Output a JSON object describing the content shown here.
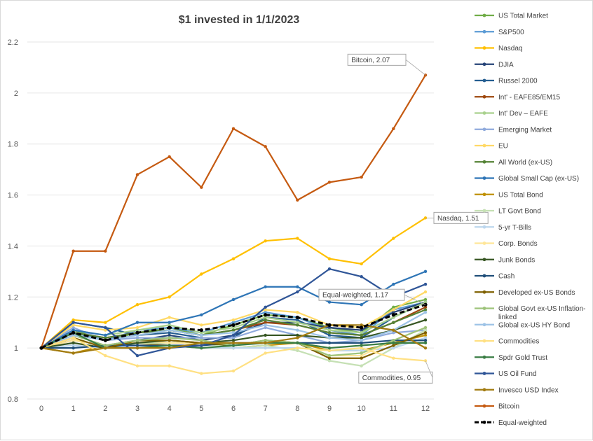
{
  "chart_data": {
    "type": "line",
    "title": "$1 invested in 1/1/2023",
    "x": [
      0,
      1,
      2,
      3,
      4,
      5,
      6,
      7,
      8,
      9,
      10,
      11,
      12
    ],
    "ylim": [
      0.8,
      2.2
    ],
    "yticks": [
      0.8,
      1,
      1.2,
      1.4,
      1.6,
      1.8,
      2,
      2.2
    ],
    "ytick_labels": [
      "0.8",
      "1",
      "1.2",
      "1.4",
      "1.6",
      "1.8",
      "2",
      "2.2"
    ],
    "xtick_labels": [
      "0",
      "1",
      "2",
      "3",
      "4",
      "5",
      "6",
      "7",
      "8",
      "9",
      "10",
      "11",
      "12"
    ],
    "grid": "horizontal",
    "legend_position": "right",
    "series": [
      {
        "name": "US Total Market",
        "color": "#70ad47",
        "values": [
          1,
          1.07,
          1.03,
          1.06,
          1.08,
          1.05,
          1.09,
          1.13,
          1.12,
          1.08,
          1.06,
          1.16,
          1.19
        ]
      },
      {
        "name": "S&P500",
        "color": "#5b9bd5",
        "values": [
          1,
          1.06,
          1.03,
          1.07,
          1.08,
          1.06,
          1.1,
          1.14,
          1.12,
          1.07,
          1.05,
          1.15,
          1.18
        ]
      },
      {
        "name": "Nasdaq",
        "color": "#ffc000",
        "values": [
          1,
          1.11,
          1.1,
          1.17,
          1.2,
          1.29,
          1.35,
          1.42,
          1.43,
          1.35,
          1.33,
          1.43,
          1.51
        ]
      },
      {
        "name": "DJIA",
        "color": "#264478",
        "values": [
          1,
          1.03,
          1.01,
          1.03,
          1.05,
          1.03,
          1.05,
          1.1,
          1.1,
          1.08,
          1.07,
          1.14,
          1.18
        ]
      },
      {
        "name": "Russel 2000",
        "color": "#255e91",
        "values": [
          1,
          1.1,
          1.08,
          1.05,
          1.06,
          1.04,
          1.04,
          1.12,
          1.11,
          1.05,
          1.04,
          1.12,
          1.18
        ]
      },
      {
        "name": "Int' - EAFE85/EM15",
        "color": "#9e480e",
        "values": [
          1,
          1.06,
          1.04,
          1.06,
          1.07,
          1.05,
          1.07,
          1.1,
          1.09,
          1.06,
          1.05,
          1.1,
          1.16
        ]
      },
      {
        "name": "Int' Dev – EAFE",
        "color": "#a9d18e",
        "values": [
          1,
          1.07,
          1.05,
          1.07,
          1.09,
          1.06,
          1.08,
          1.12,
          1.1,
          1.07,
          1.06,
          1.12,
          1.18
        ]
      },
      {
        "name": "Emerging Market",
        "color": "#8faadc",
        "values": [
          1,
          1.08,
          1.03,
          1.04,
          1.04,
          1.04,
          1.04,
          1.08,
          1.05,
          1.02,
          1.03,
          1.06,
          1.07
        ]
      },
      {
        "name": "EU",
        "color": "#ffd966",
        "values": [
          1,
          1.09,
          1.07,
          1.08,
          1.12,
          1.09,
          1.11,
          1.15,
          1.14,
          1.09,
          1.08,
          1.15,
          1.22
        ]
      },
      {
        "name": "All World (ex-US)",
        "color": "#548235",
        "values": [
          1,
          1.06,
          1.04,
          1.06,
          1.07,
          1.05,
          1.07,
          1.11,
          1.09,
          1.06,
          1.05,
          1.1,
          1.15
        ]
      },
      {
        "name": "Global Small Cap (ex-US)",
        "color": "#2e75b6",
        "values": [
          1,
          1.07,
          1.05,
          1.1,
          1.1,
          1.13,
          1.19,
          1.24,
          1.24,
          1.18,
          1.17,
          1.25,
          1.3
        ]
      },
      {
        "name": "US Total Bond",
        "color": "#bf9000",
        "values": [
          1,
          0.98,
          1.01,
          1.02,
          1.01,
          1.0,
          1.0,
          1.01,
          1.02,
          0.99,
          0.99,
          1.02,
          1.05
        ]
      },
      {
        "name": "LT Govt Bond",
        "color": "#c5e0b4",
        "values": [
          1,
          1.04,
          1.0,
          1.02,
          1.02,
          1.02,
          1.0,
          1.01,
          0.99,
          0.95,
          0.93,
          1.0,
          1.07
        ]
      },
      {
        "name": "5-yr T-Bills",
        "color": "#bdd7ee",
        "values": [
          1,
          1.01,
          1.0,
          1.01,
          1.01,
          1.0,
          1.0,
          1.0,
          1.0,
          0.99,
          0.99,
          1.0,
          1.04
        ]
      },
      {
        "name": "Corp. Bonds",
        "color": "#ffe699",
        "values": [
          1,
          1.03,
          1.01,
          1.03,
          1.02,
          1.02,
          1.01,
          1.03,
          1.02,
          0.97,
          0.97,
          1.03,
          1.08
        ]
      },
      {
        "name": "Junk Bonds",
        "color": "#375623",
        "values": [
          1,
          1.02,
          1.0,
          1.02,
          1.03,
          1.02,
          1.03,
          1.05,
          1.05,
          1.04,
          1.04,
          1.07,
          1.11
        ]
      },
      {
        "name": "Cash",
        "color": "#1f4e79",
        "values": [
          1,
          1.0,
          1.01,
          1.01,
          1.01,
          1.01,
          1.02,
          1.02,
          1.02,
          1.02,
          1.02,
          1.03,
          1.03
        ]
      },
      {
        "name": "Developed ex-US Bonds",
        "color": "#7f6000",
        "values": [
          1,
          1.04,
          1.0,
          1.03,
          1.03,
          1.02,
          1.01,
          1.03,
          1.02,
          0.96,
          0.96,
          1.01,
          1.06
        ]
      },
      {
        "name": "Global Govt ex-US Inflation-linked",
        "color": "#9dc37a",
        "values": [
          1,
          1.05,
          1.01,
          1.03,
          1.04,
          1.03,
          1.01,
          1.03,
          1.02,
          0.97,
          0.98,
          1.03,
          1.08
        ]
      },
      {
        "name": "Global ex-US HY Bond",
        "color": "#9dc3e6",
        "values": [
          1,
          1.05,
          1.03,
          1.05,
          1.07,
          1.05,
          1.06,
          1.09,
          1.07,
          1.04,
          1.03,
          1.07,
          1.14
        ]
      },
      {
        "name": "Commodities",
        "color": "#ffe082",
        "values": [
          1,
          1.04,
          0.97,
          0.93,
          0.93,
          0.9,
          0.91,
          0.98,
          1.0,
          0.99,
          1.0,
          0.96,
          0.95
        ]
      },
      {
        "name": "Spdr Gold Trust",
        "color": "#3a7d44",
        "values": [
          1,
          1.06,
          1.0,
          1.0,
          1.01,
          1.0,
          1.01,
          1.02,
          1.02,
          1.0,
          1.01,
          1.02,
          1.02
        ]
      },
      {
        "name": "US Oil Fund",
        "color": "#2f5597",
        "values": [
          1,
          1.1,
          1.08,
          0.97,
          1.0,
          1.01,
          1.05,
          1.16,
          1.22,
          1.31,
          1.28,
          1.2,
          1.25
        ]
      },
      {
        "name": "Invesco USD Index",
        "color": "#a27b10",
        "values": [
          1,
          0.98,
          1.0,
          1.0,
          1.0,
          1.02,
          1.02,
          1.02,
          1.04,
          1.09,
          1.09,
          1.07,
          1.0
        ]
      },
      {
        "name": "Bitcoin",
        "color": "#c55a11",
        "values": [
          1,
          1.38,
          1.38,
          1.68,
          1.75,
          1.63,
          1.86,
          1.79,
          1.58,
          1.65,
          1.67,
          1.86,
          2.07
        ]
      },
      {
        "name": "Equal-weighted",
        "color": "#000000",
        "dashed": true,
        "values": [
          1,
          1.06,
          1.03,
          1.06,
          1.08,
          1.07,
          1.09,
          1.13,
          1.12,
          1.09,
          1.08,
          1.13,
          1.17
        ]
      }
    ],
    "annotations": [
      {
        "series": "Bitcoin",
        "text": "Bitcoin, 2.07"
      },
      {
        "series": "Nasdaq",
        "text": "Nasdaq, 1.51"
      },
      {
        "series": "Equal-weighted",
        "text": "Equal-weighted, 1.17"
      },
      {
        "series": "Commodities",
        "text": "Commodities, 0.95"
      }
    ]
  }
}
